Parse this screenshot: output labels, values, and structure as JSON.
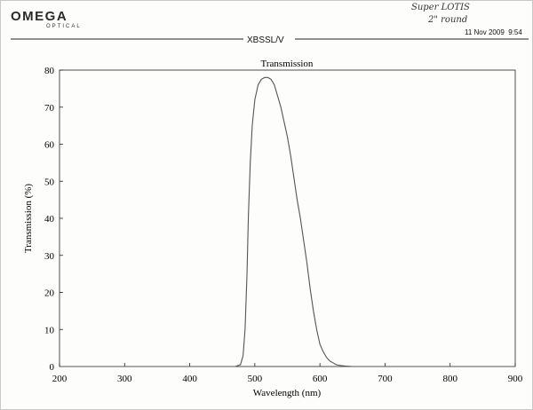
{
  "header": {
    "logo_text": "OMEGA",
    "logo_subtext": "OPTICAL",
    "handwritten_note_line1": "Super LOTIS",
    "handwritten_note_line2": "2\" round",
    "date": "11 Nov 2009",
    "time": "9:54",
    "filter_name": "XBSSL/V"
  },
  "colors": {
    "ink": "#1a1a1a",
    "curve": "#555555",
    "axis": "#222222"
  },
  "chart_data": {
    "type": "line",
    "title": "Transmission",
    "xlabel": "Wavelength (nm)",
    "ylabel": "Transmission (%)",
    "xlim": [
      200,
      900
    ],
    "ylim": [
      0,
      80
    ],
    "x_ticks": [
      200,
      300,
      400,
      500,
      600,
      700,
      800,
      900
    ],
    "y_ticks": [
      0,
      10,
      20,
      30,
      40,
      50,
      60,
      70,
      80
    ],
    "grid": false,
    "series": [
      {
        "x": [
          200,
          300,
          400,
          470,
          478,
          482,
          485,
          488,
          490,
          493,
          496,
          500,
          505,
          510,
          515,
          520,
          525,
          530,
          535,
          540,
          545,
          550,
          555,
          560,
          565,
          570,
          575,
          580,
          585,
          590,
          595,
          600,
          605,
          610,
          615,
          620,
          625,
          630,
          640,
          650,
          700,
          800,
          900
        ],
        "y": [
          0,
          0,
          0,
          0,
          0.5,
          3,
          10,
          25,
          40,
          55,
          65,
          72,
          76,
          77.5,
          78,
          78,
          77.5,
          76,
          73,
          70,
          66,
          62,
          57,
          51,
          45,
          40,
          34,
          28,
          21,
          15,
          10,
          6,
          4,
          2.5,
          1.5,
          1,
          0.5,
          0.3,
          0.1,
          0,
          0,
          0,
          0
        ]
      }
    ]
  }
}
